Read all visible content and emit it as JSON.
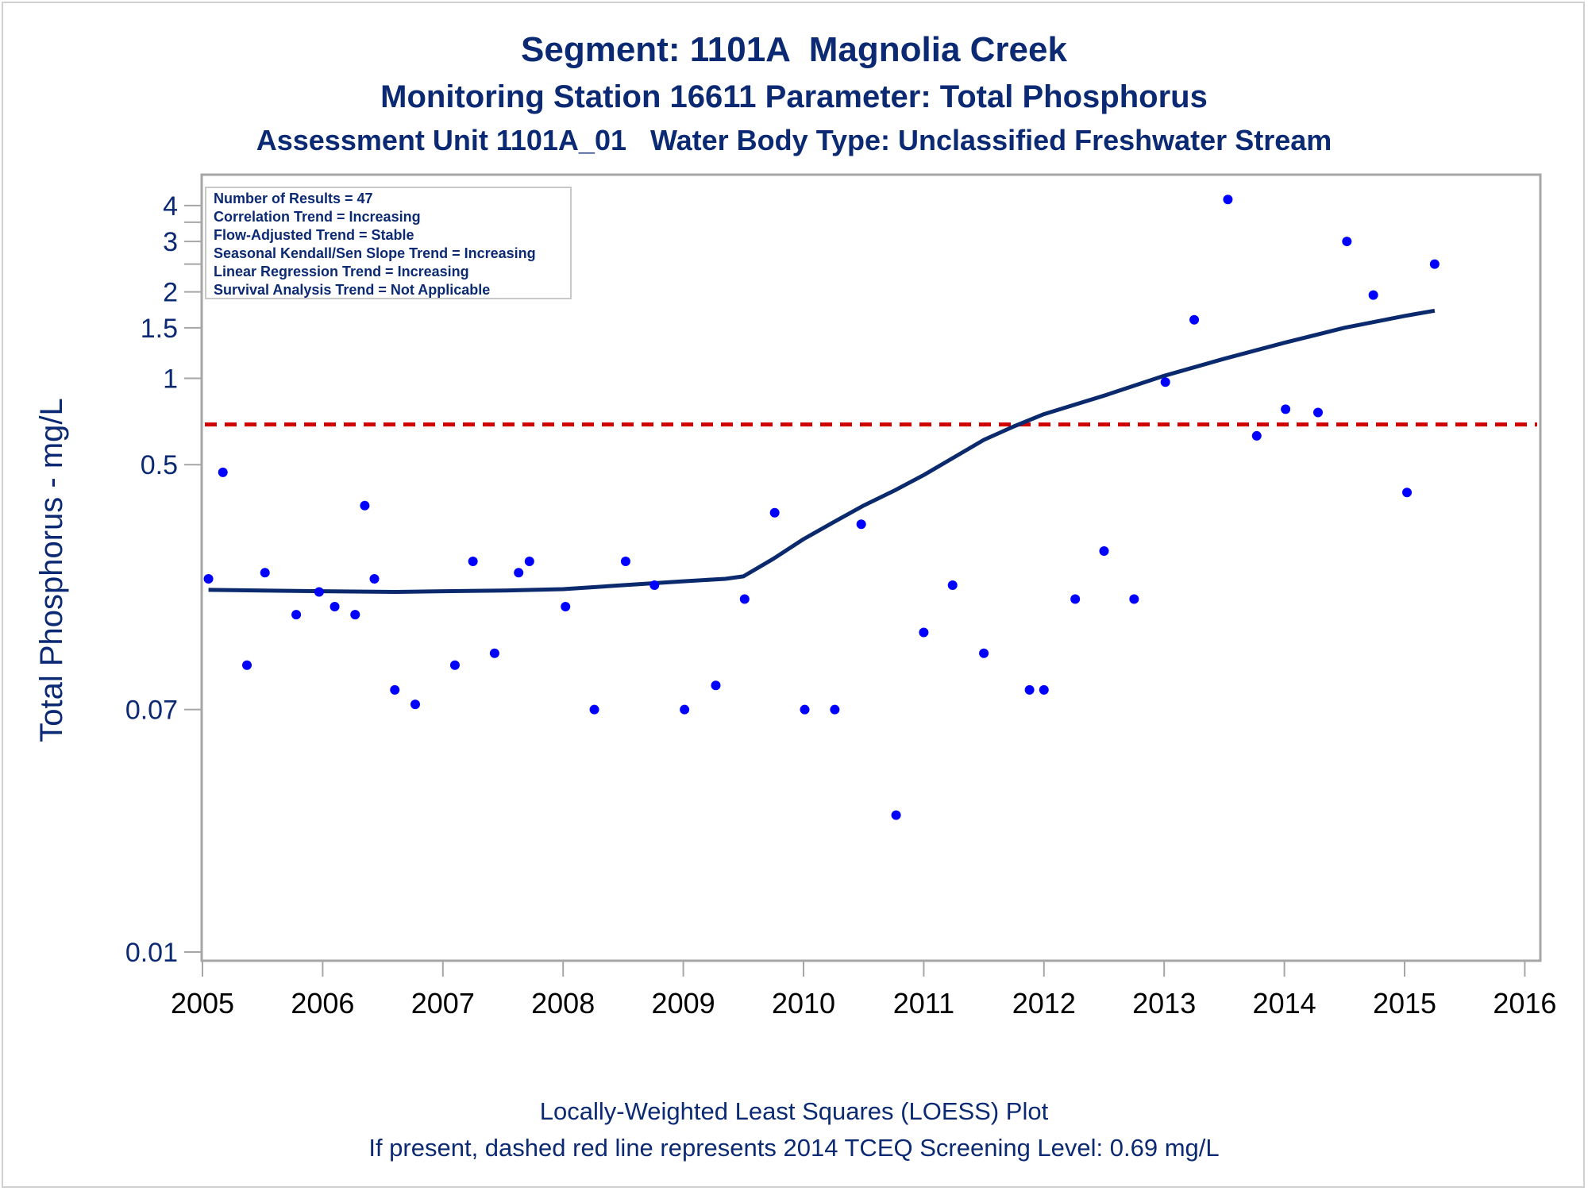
{
  "titles": {
    "line1": "Segment: 1101A  Magnolia Creek",
    "line2": "Monitoring Station 16611 Parameter: Total Phosphorus",
    "line3": "Assessment Unit 1101A_01   Water Body Type: Unclassified Freshwater Stream"
  },
  "footnotes": {
    "line1": "Locally-Weighted Least Squares (LOESS) Plot",
    "line2": "If present, dashed red line represents 2014 TCEQ Screening Level: 0.69 mg/L"
  },
  "info_box": [
    "Number of Results = 47",
    "Correlation Trend = Increasing",
    "Flow-Adjusted Trend = Stable",
    "Seasonal Kendall/Sen Slope Trend = Increasing",
    "Linear Regression Trend = Increasing",
    "Survival Analysis Trend = Not Applicable"
  ],
  "colors": {
    "text": "#0b2a73",
    "points": "#0000ff",
    "loess": "#0b2a6e",
    "screening": "#d00000",
    "frame": "#a6a6a6"
  },
  "chart_data": {
    "type": "scatter",
    "ylabel": "Total Phosphorus - mg/L",
    "xlabel": "",
    "x_ticks": [
      "2005",
      "2006",
      "2007",
      "2008",
      "2009",
      "2010",
      "2011",
      "2012",
      "2013",
      "2014",
      "2015",
      "2016"
    ],
    "xlim": [
      2005,
      2016
    ],
    "y_scale": "log",
    "ylim": [
      0.01,
      4.6
    ],
    "y_ticks": [
      {
        "value": 4,
        "label": "4"
      },
      {
        "value": 3.5,
        "label": ""
      },
      {
        "value": 3,
        "label": "3"
      },
      {
        "value": 2.5,
        "label": ""
      },
      {
        "value": 2,
        "label": "2"
      },
      {
        "value": 1.5,
        "label": "1.5"
      },
      {
        "value": 1,
        "label": "1"
      },
      {
        "value": 0.5,
        "label": "0.5"
      },
      {
        "value": 0.07,
        "label": "0.07"
      },
      {
        "value": 0.01,
        "label": "0.01"
      }
    ],
    "screening_level": 0.69,
    "points": [
      {
        "x": 2005.05,
        "y": 0.2
      },
      {
        "x": 2005.17,
        "y": 0.47
      },
      {
        "x": 2005.37,
        "y": 0.1
      },
      {
        "x": 2005.52,
        "y": 0.21
      },
      {
        "x": 2005.78,
        "y": 0.15
      },
      {
        "x": 2005.97,
        "y": 0.18
      },
      {
        "x": 2006.1,
        "y": 0.16
      },
      {
        "x": 2006.27,
        "y": 0.15
      },
      {
        "x": 2006.35,
        "y": 0.36
      },
      {
        "x": 2006.43,
        "y": 0.2
      },
      {
        "x": 2006.6,
        "y": 0.082
      },
      {
        "x": 2006.77,
        "y": 0.073
      },
      {
        "x": 2007.1,
        "y": 0.1
      },
      {
        "x": 2007.25,
        "y": 0.23
      },
      {
        "x": 2007.43,
        "y": 0.11
      },
      {
        "x": 2007.63,
        "y": 0.21
      },
      {
        "x": 2007.72,
        "y": 0.23
      },
      {
        "x": 2008.02,
        "y": 0.16
      },
      {
        "x": 2008.26,
        "y": 0.07
      },
      {
        "x": 2008.52,
        "y": 0.23
      },
      {
        "x": 2008.76,
        "y": 0.19
      },
      {
        "x": 2009.01,
        "y": 0.07
      },
      {
        "x": 2009.27,
        "y": 0.085
      },
      {
        "x": 2009.51,
        "y": 0.17
      },
      {
        "x": 2009.76,
        "y": 0.34
      },
      {
        "x": 2010.01,
        "y": 0.07
      },
      {
        "x": 2010.26,
        "y": 0.07
      },
      {
        "x": 2010.48,
        "y": 0.31
      },
      {
        "x": 2010.77,
        "y": 0.03
      },
      {
        "x": 2011.0,
        "y": 0.13
      },
      {
        "x": 2011.24,
        "y": 0.19
      },
      {
        "x": 2011.5,
        "y": 0.11
      },
      {
        "x": 2011.88,
        "y": 0.082
      },
      {
        "x": 2012.0,
        "y": 0.082
      },
      {
        "x": 2012.26,
        "y": 0.17
      },
      {
        "x": 2012.5,
        "y": 0.25
      },
      {
        "x": 2012.75,
        "y": 0.17
      },
      {
        "x": 2013.01,
        "y": 0.97
      },
      {
        "x": 2013.25,
        "y": 1.6
      },
      {
        "x": 2013.53,
        "y": 4.2
      },
      {
        "x": 2013.77,
        "y": 0.63
      },
      {
        "x": 2014.01,
        "y": 0.78
      },
      {
        "x": 2014.28,
        "y": 0.76
      },
      {
        "x": 2014.52,
        "y": 3.0
      },
      {
        "x": 2014.74,
        "y": 1.95
      },
      {
        "x": 2015.02,
        "y": 0.4
      },
      {
        "x": 2015.25,
        "y": 2.5
      }
    ],
    "loess": [
      {
        "x": 2005.05,
        "y": 0.183
      },
      {
        "x": 2005.5,
        "y": 0.182
      },
      {
        "x": 2006.0,
        "y": 0.181
      },
      {
        "x": 2006.6,
        "y": 0.18
      },
      {
        "x": 2007.0,
        "y": 0.181
      },
      {
        "x": 2007.5,
        "y": 0.182
      },
      {
        "x": 2008.0,
        "y": 0.184
      },
      {
        "x": 2008.5,
        "y": 0.19
      },
      {
        "x": 2009.0,
        "y": 0.196
      },
      {
        "x": 2009.35,
        "y": 0.2
      },
      {
        "x": 2009.5,
        "y": 0.204
      },
      {
        "x": 2009.75,
        "y": 0.235
      },
      {
        "x": 2010.0,
        "y": 0.275
      },
      {
        "x": 2010.25,
        "y": 0.315
      },
      {
        "x": 2010.5,
        "y": 0.36
      },
      {
        "x": 2010.75,
        "y": 0.405
      },
      {
        "x": 2011.0,
        "y": 0.46
      },
      {
        "x": 2011.25,
        "y": 0.53
      },
      {
        "x": 2011.5,
        "y": 0.61
      },
      {
        "x": 2011.75,
        "y": 0.68
      },
      {
        "x": 2012.0,
        "y": 0.75
      },
      {
        "x": 2012.5,
        "y": 0.87
      },
      {
        "x": 2013.0,
        "y": 1.02
      },
      {
        "x": 2013.5,
        "y": 1.17
      },
      {
        "x": 2014.0,
        "y": 1.33
      },
      {
        "x": 2014.5,
        "y": 1.5
      },
      {
        "x": 2015.0,
        "y": 1.65
      },
      {
        "x": 2015.25,
        "y": 1.72
      }
    ]
  }
}
